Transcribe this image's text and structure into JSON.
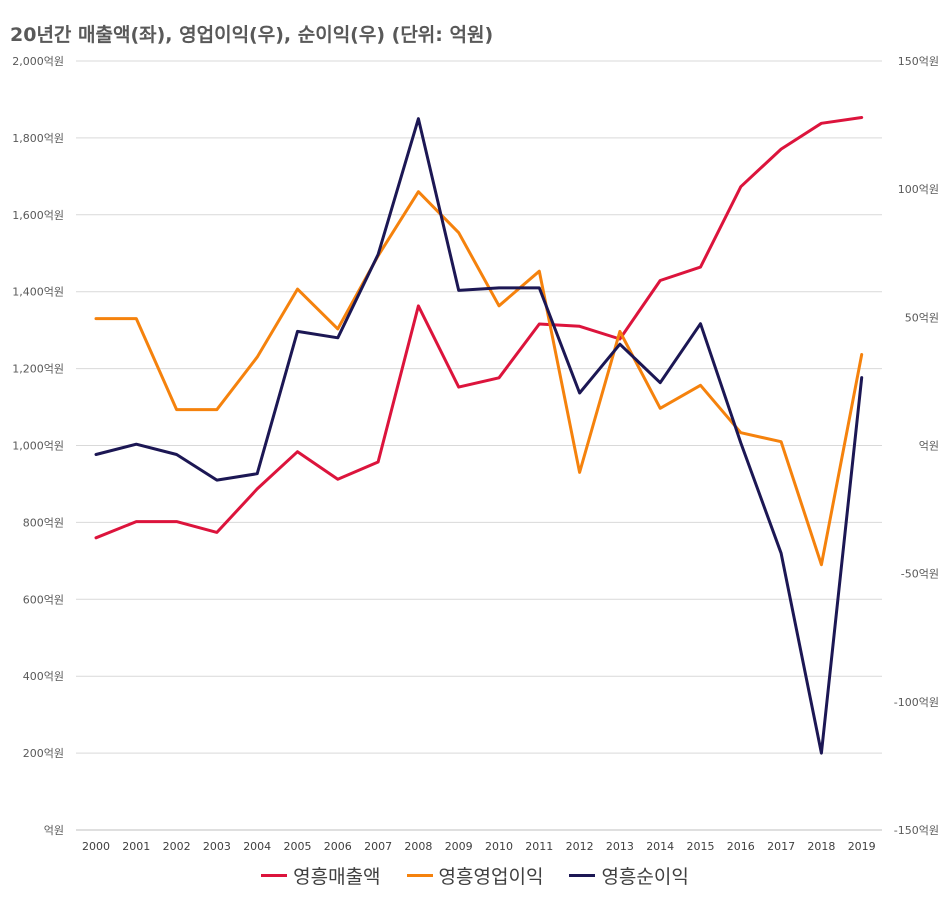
{
  "chart_data": {
    "type": "line",
    "title": "20년간 매출액(좌), 영업이익(우), 순이익(우) (단위: 억원)",
    "categories": [
      "2000",
      "2001",
      "2002",
      "2003",
      "2004",
      "2005",
      "2006",
      "2007",
      "2008",
      "2009",
      "2010",
      "2011",
      "2012",
      "2013",
      "2014",
      "2015",
      "2016",
      "2017",
      "2018",
      "2019"
    ],
    "y_left": {
      "range": [
        0,
        2000
      ],
      "ticks": [
        {
          "value": 0,
          "label": "억원"
        },
        {
          "value": 200,
          "label": "200억원"
        },
        {
          "value": 400,
          "label": "400억원"
        },
        {
          "value": 600,
          "label": "600억원"
        },
        {
          "value": 800,
          "label": "800억원"
        },
        {
          "value": 1000,
          "label": "1,000억원"
        },
        {
          "value": 1200,
          "label": "1,200억원"
        },
        {
          "value": 1400,
          "label": "1,400억원"
        },
        {
          "value": 1600,
          "label": "1,600억원"
        },
        {
          "value": 1800,
          "label": "1,800억원"
        },
        {
          "value": 2000,
          "label": "2,000억원"
        }
      ]
    },
    "y_right": {
      "range": [
        -150,
        150
      ],
      "ticks": [
        {
          "value": -150,
          "label": "-150억원"
        },
        {
          "value": -100,
          "label": "-100억원"
        },
        {
          "value": -50,
          "label": "-50억원"
        },
        {
          "value": 0,
          "label": "억원"
        },
        {
          "value": 50,
          "label": "50억원"
        },
        {
          "value": 100,
          "label": "100억원"
        },
        {
          "value": 150,
          "label": "150억원"
        }
      ]
    },
    "grid": true,
    "legend_position": "bottom",
    "series": [
      {
        "name": "영흥매출액",
        "axis": "left",
        "color": "#DC143C",
        "values": [
          760,
          802,
          802,
          774,
          887,
          984,
          912,
          957,
          1363,
          1152,
          1176,
          1316,
          1310,
          1277,
          1429,
          1464,
          1673,
          1771,
          1838,
          1853
        ]
      },
      {
        "name": "영흥영업이익",
        "axis": "right",
        "color": "#F5820D",
        "values": [
          49.5,
          49.5,
          14,
          14,
          34.5,
          61,
          45.5,
          74,
          99,
          83,
          54.5,
          68,
          -10.5,
          44.5,
          14.5,
          23.5,
          5,
          1.5,
          -46.5,
          35.5
        ]
      },
      {
        "name": "영흥순이익",
        "axis": "right",
        "color": "#1C1754",
        "values": [
          -3.5,
          0.5,
          -3.5,
          -13.5,
          -11,
          44.5,
          42,
          74.5,
          127.5,
          60.5,
          61.5,
          61.5,
          20.5,
          39.5,
          24.5,
          47.5,
          1,
          -42,
          -120,
          26.5
        ]
      }
    ]
  }
}
